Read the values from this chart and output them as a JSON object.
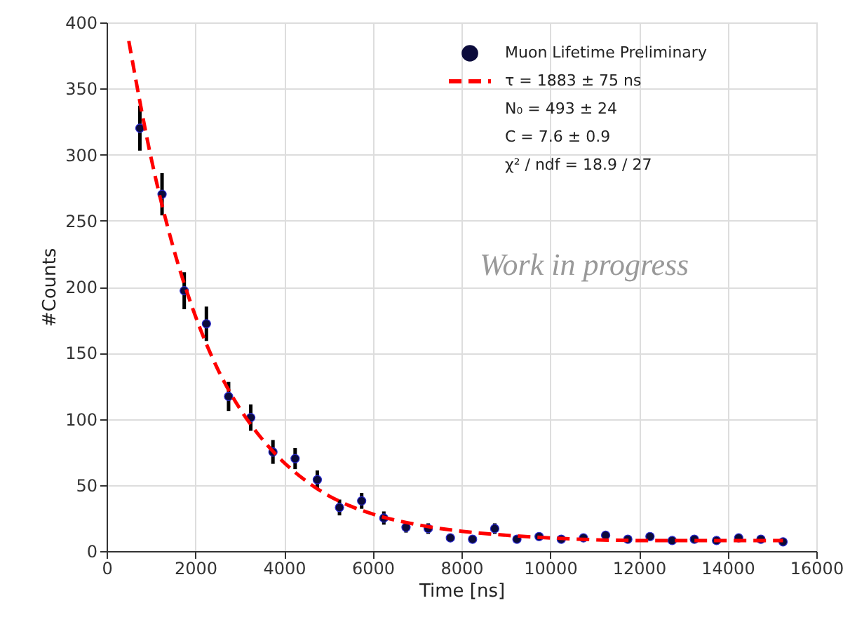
{
  "chart_data": {
    "type": "scatter",
    "xlabel": "Time [ns]",
    "ylabel": "#Counts",
    "xlim": [
      0,
      16000
    ],
    "xticks": [
      0,
      2000,
      4000,
      6000,
      8000,
      10000,
      12000,
      14000,
      16000
    ],
    "ylim": [
      0,
      400
    ],
    "yticks": [
      0,
      50,
      100,
      150,
      200,
      250,
      300,
      350,
      400
    ],
    "grid": true,
    "legend": "top right",
    "series": [
      {
        "name": "Muon Lifetime Preliminary",
        "color": "#0b0b3b",
        "marker": "circle",
        "x": [
          750,
          1250,
          1750,
          2250,
          2750,
          3250,
          3750,
          4250,
          4750,
          5250,
          5750,
          6250,
          6750,
          7250,
          7750,
          8250,
          8750,
          9250,
          9750,
          10250,
          10750,
          11250,
          11750,
          12250,
          12750,
          13250,
          13750,
          14250,
          14750,
          15250
        ],
        "values": [
          320,
          270,
          197,
          172,
          117,
          101,
          75,
          70,
          54,
          33,
          38,
          25,
          18,
          17,
          10,
          9,
          17,
          9,
          11,
          9,
          10,
          12,
          9,
          11,
          8,
          9,
          8,
          10,
          9,
          7
        ],
        "errors": [
          17,
          16,
          14,
          13,
          11,
          10,
          9,
          8,
          7,
          6,
          6,
          5,
          4,
          4,
          null,
          null,
          4,
          null,
          null,
          null,
          null,
          null,
          null,
          null,
          null,
          null,
          null,
          null,
          null,
          null
        ]
      },
      {
        "name": "τ = 1883 ± 75 ns",
        "type": "line",
        "color": "#ff0000",
        "marker": "none",
        "line_style": "dashed",
        "x": [
          500,
          1000,
          1500,
          2000,
          2500,
          3000,
          3500,
          4000,
          4500,
          5000,
          5500,
          6000,
          7000,
          8000,
          9000,
          10000,
          12000,
          14000,
          15250
        ],
        "values": [
          386,
          298,
          230,
          178,
          138,
          108,
          85,
          67,
          53,
          42,
          34,
          28,
          20,
          15,
          12,
          10,
          8,
          8,
          8
        ]
      }
    ],
    "annotations": [
      "N₀ = 493 ± 24",
      "C = 7.6 ± 0.9",
      "χ² / ndf = 18.9 / 27",
      "Work in progress"
    ]
  }
}
